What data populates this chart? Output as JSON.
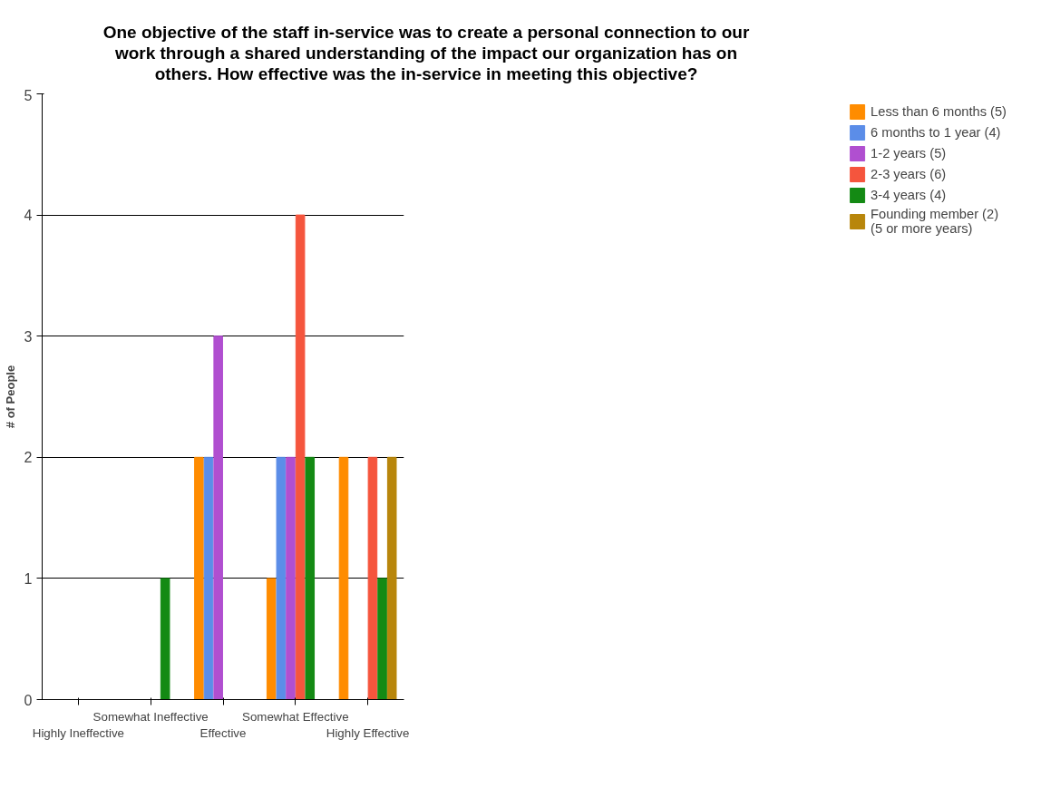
{
  "chart_data": {
    "type": "bar",
    "title": "One objective of the staff in-service was to create a personal connection to our work through a shared understanding of the impact our organization has on others. How effective was the in-service in meeting this objective?",
    "ylabel": "# of People",
    "categories": [
      "Highly Ineffective",
      "Somewhat Ineffective",
      "Effective",
      "Somewhat Effective",
      "Highly Effective"
    ],
    "series": [
      {
        "name": "Less than 6 months (5)",
        "color": "#ff8c00",
        "values": [
          0,
          0,
          2,
          1,
          2
        ]
      },
      {
        "name": "6 months to 1 year (4)",
        "color": "#5b8de8",
        "values": [
          0,
          0,
          2,
          2,
          0
        ]
      },
      {
        "name": "1-2 years (5)",
        "color": "#b04fd0",
        "values": [
          0,
          0,
          3,
          2,
          0
        ]
      },
      {
        "name": "2-3 years (6)",
        "color": "#f5553d",
        "values": [
          0,
          0,
          0,
          4,
          2
        ]
      },
      {
        "name": "3-4 years (4)",
        "color": "#148a14",
        "values": [
          0,
          1,
          0,
          2,
          1
        ]
      },
      {
        "name": "Founding member (2)\n(5 or more years)",
        "color": "#b8860b",
        "values": [
          0,
          0,
          0,
          0,
          2
        ]
      }
    ],
    "ylim": [
      0,
      5
    ],
    "yticks": [
      0,
      1,
      2,
      3,
      4,
      5
    ],
    "grid": "y",
    "legend": "right"
  }
}
